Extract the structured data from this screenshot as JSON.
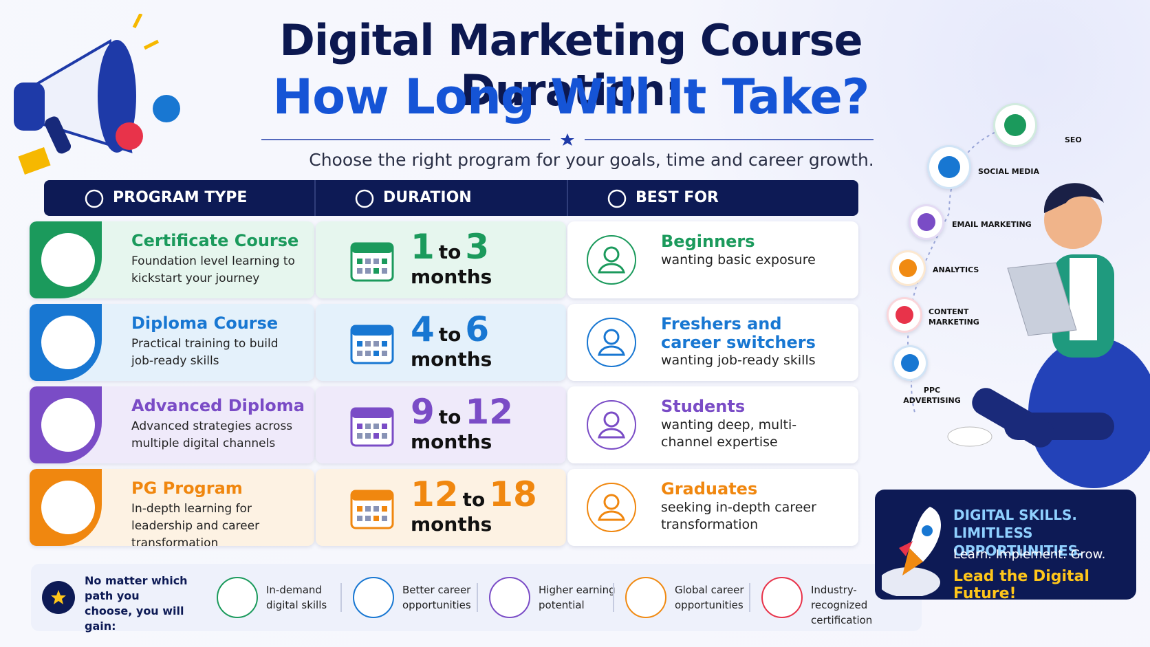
{
  "header": {
    "title_line1": "Digital Marketing Course Duration:",
    "title_line2": "How Long Will It Take?",
    "subtitle": "Choose the right program for your goals, time and career growth."
  },
  "table": {
    "headers": [
      "PROGRAM TYPE",
      "DURATION",
      "BEST FOR"
    ],
    "rows": [
      {
        "program": "Certificate Course",
        "description": "Foundation level learning to kickstart your journey",
        "from": 1,
        "connector": "to",
        "to": 3,
        "unit": "months",
        "best_for": "Beginners",
        "best_for_detail": "wanting basic exposure",
        "color": "#1b9a5c",
        "tint": "#e6f6ee"
      },
      {
        "program": "Diploma Course",
        "description": "Practical training to build job-ready skills",
        "from": 4,
        "connector": "to",
        "to": 6,
        "unit": "months",
        "best_for": "Freshers and career switchers",
        "best_for_detail": "wanting job-ready skills",
        "color": "#1877d2",
        "tint": "#e4f1fb"
      },
      {
        "program": "Advanced Diploma",
        "description": "Advanced strategies across multiple digital channels",
        "from": 9,
        "connector": "to",
        "to": 12,
        "unit": "months",
        "best_for": "Students",
        "best_for_detail": "wanting deep, multi-channel expertise",
        "color": "#7a4cc6",
        "tint": "#efeafa"
      },
      {
        "program": "PG Program",
        "description": "In-depth learning for leadership and career transformation",
        "from": 12,
        "connector": "to",
        "to": 18,
        "unit": "months",
        "best_for": "Graduates",
        "best_for_detail": "seeking in-depth career transformation",
        "color": "#f0870f",
        "tint": "#fdf2e3"
      }
    ]
  },
  "footer": {
    "intro": "No matter which path you choose, you will gain:",
    "benefits": [
      "In-demand digital skills",
      "Better career opportunities",
      "Higher earning potential",
      "Global career opportunities",
      "Industry-recognized certification"
    ]
  },
  "channels": [
    "SEO",
    "SOCIAL MEDIA",
    "EMAIL MARKETING",
    "ANALYTICS",
    "CONTENT MARKETING",
    "PPC ADVERTISING"
  ],
  "promo": {
    "headline": "DIGITAL SKILLS. LIMITLESS OPPORTUNITIES.",
    "tagline": "Learn. Implement. Grow.",
    "cta": "Lead the Digital Future!"
  }
}
